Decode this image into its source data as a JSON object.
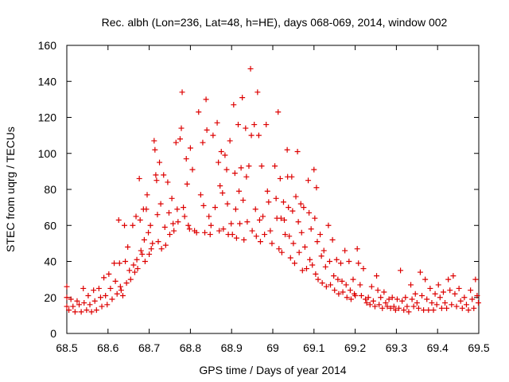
{
  "chart_data": {
    "type": "scatter",
    "title": "Rec. albh (Lon=236, Lat=48, h=HE), days 068-069, 2014, window 002",
    "xlabel": "GPS time / Days of year 2014",
    "ylabel": "STEC from uqrg / TECUs",
    "xlim": [
      68.5,
      69.5
    ],
    "ylim": [
      0,
      160
    ],
    "x_ticks": [
      68.5,
      68.6,
      68.7,
      68.8,
      68.9,
      69.0,
      69.1,
      69.2,
      69.3,
      69.4,
      69.5
    ],
    "x_tick_labels": [
      "68.5",
      "68.6",
      "68.7",
      "68.8",
      "68.9",
      "69",
      "69.1",
      "69.2",
      "69.3",
      "69.4",
      "69.5"
    ],
    "y_ticks": [
      0,
      20,
      40,
      60,
      80,
      100,
      120,
      140,
      160
    ],
    "y_tick_labels": [
      "0",
      "20",
      "40",
      "60",
      "80",
      "100",
      "120",
      "140",
      "160"
    ],
    "grid": false,
    "marker": "+",
    "color": "#dd0000",
    "series": [
      {
        "name": "STEC",
        "points": [
          [
            68.5,
            26
          ],
          [
            68.5,
            20
          ],
          [
            68.5,
            15
          ],
          [
            68.505,
            13
          ],
          [
            68.51,
            19
          ],
          [
            68.515,
            15
          ],
          [
            68.52,
            12
          ],
          [
            68.525,
            18
          ],
          [
            68.53,
            16
          ],
          [
            68.535,
            12
          ],
          [
            68.54,
            25
          ],
          [
            68.542,
            17
          ],
          [
            68.548,
            13
          ],
          [
            68.552,
            21
          ],
          [
            68.556,
            16
          ],
          [
            68.56,
            12
          ],
          [
            68.565,
            24
          ],
          [
            68.568,
            18
          ],
          [
            68.572,
            13
          ],
          [
            68.578,
            25
          ],
          [
            68.582,
            20
          ],
          [
            68.585,
            15
          ],
          [
            68.59,
            31
          ],
          [
            68.594,
            21
          ],
          [
            68.598,
            16
          ],
          [
            68.602,
            33
          ],
          [
            68.606,
            25
          ],
          [
            68.61,
            19
          ],
          [
            68.615,
            39
          ],
          [
            68.618,
            29
          ],
          [
            68.622,
            22
          ],
          [
            68.626,
            63
          ],
          [
            68.628,
            39
          ],
          [
            68.63,
            26
          ],
          [
            68.632,
            24
          ],
          [
            68.636,
            21
          ],
          [
            68.64,
            60
          ],
          [
            68.642,
            40
          ],
          [
            68.645,
            28
          ],
          [
            68.648,
            48
          ],
          [
            68.652,
            35
          ],
          [
            68.655,
            30
          ],
          [
            68.66,
            60
          ],
          [
            68.662,
            38
          ],
          [
            68.665,
            34
          ],
          [
            68.668,
            65
          ],
          [
            68.67,
            41
          ],
          [
            68.672,
            36
          ],
          [
            68.676,
            86
          ],
          [
            68.678,
            63
          ],
          [
            68.68,
            46
          ],
          [
            68.683,
            44
          ],
          [
            68.686,
            69
          ],
          [
            68.688,
            52
          ],
          [
            68.69,
            40
          ],
          [
            68.693,
            69
          ],
          [
            68.695,
            77
          ],
          [
            68.698,
            56
          ],
          [
            68.7,
            44
          ],
          [
            68.703,
            60
          ],
          [
            68.705,
            47
          ],
          [
            68.708,
            50
          ],
          [
            68.712,
            107
          ],
          [
            68.714,
            102
          ],
          [
            68.716,
            88
          ],
          [
            68.718,
            85
          ],
          [
            68.72,
            66
          ],
          [
            68.722,
            51
          ],
          [
            68.725,
            95
          ],
          [
            68.728,
            72
          ],
          [
            68.73,
            47
          ],
          [
            68.735,
            88
          ],
          [
            68.738,
            59
          ],
          [
            68.74,
            49
          ],
          [
            68.745,
            84
          ],
          [
            68.748,
            67
          ],
          [
            68.75,
            55
          ],
          [
            68.755,
            75
          ],
          [
            68.758,
            61
          ],
          [
            68.76,
            57
          ],
          [
            68.765,
            106
          ],
          [
            68.768,
            69
          ],
          [
            68.77,
            62
          ],
          [
            68.775,
            108
          ],
          [
            68.778,
            114
          ],
          [
            68.78,
            134
          ],
          [
            68.783,
            70
          ],
          [
            68.786,
            65
          ],
          [
            68.79,
            97
          ],
          [
            68.792,
            83
          ],
          [
            68.795,
            60
          ],
          [
            68.798,
            58
          ],
          [
            68.8,
            103
          ],
          [
            68.805,
            91
          ],
          [
            68.81,
            57
          ],
          [
            68.815,
            56
          ],
          [
            68.82,
            123
          ],
          [
            68.825,
            77
          ],
          [
            68.83,
            106
          ],
          [
            68.832,
            71
          ],
          [
            68.835,
            56
          ],
          [
            68.838,
            130
          ],
          [
            68.84,
            113
          ],
          [
            68.845,
            65
          ],
          [
            68.848,
            55
          ],
          [
            68.85,
            60
          ],
          [
            68.855,
            110
          ],
          [
            68.86,
            70
          ],
          [
            68.865,
            117
          ],
          [
            68.868,
            95
          ],
          [
            68.87,
            57
          ],
          [
            68.872,
            82
          ],
          [
            68.875,
            101
          ],
          [
            68.878,
            78
          ],
          [
            68.88,
            58
          ],
          [
            68.884,
            99
          ],
          [
            68.888,
            91
          ],
          [
            68.89,
            72
          ],
          [
            68.892,
            55
          ],
          [
            68.896,
            107
          ],
          [
            68.899,
            61
          ],
          [
            68.902,
            55
          ],
          [
            68.905,
            127
          ],
          [
            68.908,
            89
          ],
          [
            68.91,
            69
          ],
          [
            68.912,
            53
          ],
          [
            68.916,
            116
          ],
          [
            68.918,
            79
          ],
          [
            68.92,
            61
          ],
          [
            68.923,
            92
          ],
          [
            68.926,
            131
          ],
          [
            68.928,
            74
          ],
          [
            68.93,
            52
          ],
          [
            68.934,
            114
          ],
          [
            68.936,
            87
          ],
          [
            68.938,
            62
          ],
          [
            68.942,
            93
          ],
          [
            68.946,
            147
          ],
          [
            68.948,
            110
          ],
          [
            68.95,
            57
          ],
          [
            68.955,
            116
          ],
          [
            68.958,
            69
          ],
          [
            68.96,
            54
          ],
          [
            68.963,
            134
          ],
          [
            68.966,
            110
          ],
          [
            68.968,
            63
          ],
          [
            68.97,
            51
          ],
          [
            68.973,
            93
          ],
          [
            68.976,
            65
          ],
          [
            68.98,
            55
          ],
          [
            68.984,
            116
          ],
          [
            68.987,
            79
          ],
          [
            68.99,
            73
          ],
          [
            68.994,
            57
          ],
          [
            68.998,
            50
          ],
          [
            69.005,
            93
          ],
          [
            69.008,
            75
          ],
          [
            69.01,
            64
          ],
          [
            69.013,
            123
          ],
          [
            69.015,
            47
          ],
          [
            69.018,
            86
          ],
          [
            69.02,
            64
          ],
          [
            69.022,
            45
          ],
          [
            69.026,
            73
          ],
          [
            69.028,
            63
          ],
          [
            69.03,
            55
          ],
          [
            69.035,
            102
          ],
          [
            69.036,
            87
          ],
          [
            69.038,
            70
          ],
          [
            69.04,
            54
          ],
          [
            69.043,
            42
          ],
          [
            69.046,
            87
          ],
          [
            69.048,
            68
          ],
          [
            69.05,
            50
          ],
          [
            69.053,
            39
          ],
          [
            69.056,
            76
          ],
          [
            69.06,
            101
          ],
          [
            69.062,
            62
          ],
          [
            69.064,
            45
          ],
          [
            69.068,
            72
          ],
          [
            69.07,
            56
          ],
          [
            69.072,
            35
          ],
          [
            69.075,
            70
          ],
          [
            69.078,
            48
          ],
          [
            69.082,
            36
          ],
          [
            69.086,
            85
          ],
          [
            69.088,
            67
          ],
          [
            69.09,
            41
          ],
          [
            69.093,
            58
          ],
          [
            69.096,
            38
          ],
          [
            69.1,
            91
          ],
          [
            69.102,
            64
          ],
          [
            69.104,
            33
          ],
          [
            69.106,
            81
          ],
          [
            69.108,
            51
          ],
          [
            69.11,
            30
          ],
          [
            69.115,
            55
          ],
          [
            69.118,
            43
          ],
          [
            69.12,
            28
          ],
          [
            69.124,
            46
          ],
          [
            69.128,
            37
          ],
          [
            69.13,
            26
          ],
          [
            69.135,
            60
          ],
          [
            69.138,
            40
          ],
          [
            69.14,
            27
          ],
          [
            69.145,
            52
          ],
          [
            69.148,
            32
          ],
          [
            69.15,
            24
          ],
          [
            69.155,
            41
          ],
          [
            69.158,
            30
          ],
          [
            69.16,
            22
          ],
          [
            69.165,
            39
          ],
          [
            69.168,
            29
          ],
          [
            69.17,
            23
          ],
          [
            69.175,
            46
          ],
          [
            69.178,
            27
          ],
          [
            69.18,
            20
          ],
          [
            69.185,
            40
          ],
          [
            69.188,
            24
          ],
          [
            69.19,
            19
          ],
          [
            69.195,
            30
          ],
          [
            69.198,
            22
          ],
          [
            69.2,
            21
          ],
          [
            69.205,
            47
          ],
          [
            69.208,
            39
          ],
          [
            69.212,
            27
          ],
          [
            69.215,
            21
          ],
          [
            69.22,
            36
          ],
          [
            69.225,
            19
          ],
          [
            69.228,
            17
          ],
          [
            69.232,
            20
          ],
          [
            69.236,
            16
          ],
          [
            69.24,
            26
          ],
          [
            69.244,
            18
          ],
          [
            69.248,
            15
          ],
          [
            69.252,
            32
          ],
          [
            69.255,
            24
          ],
          [
            69.258,
            16
          ],
          [
            69.262,
            20
          ],
          [
            69.266,
            14
          ],
          [
            69.27,
            23
          ],
          [
            69.274,
            17
          ],
          [
            69.278,
            15
          ],
          [
            69.282,
            19
          ],
          [
            69.286,
            14
          ],
          [
            69.29,
            20
          ],
          [
            69.294,
            15
          ],
          [
            69.298,
            13
          ],
          [
            69.302,
            19
          ],
          [
            69.306,
            14
          ],
          [
            69.31,
            35
          ],
          [
            69.314,
            18
          ],
          [
            69.318,
            13
          ],
          [
            69.322,
            20
          ],
          [
            69.326,
            15
          ],
          [
            69.33,
            12
          ],
          [
            69.335,
            27
          ],
          [
            69.338,
            19
          ],
          [
            69.342,
            15
          ],
          [
            69.346,
            22
          ],
          [
            69.35,
            17
          ],
          [
            69.354,
            14
          ],
          [
            69.358,
            34
          ],
          [
            69.362,
            21
          ],
          [
            69.366,
            13
          ],
          [
            69.37,
            30
          ],
          [
            69.374,
            19
          ],
          [
            69.378,
            13
          ],
          [
            69.382,
            25
          ],
          [
            69.386,
            17
          ],
          [
            69.39,
            13
          ],
          [
            69.394,
            22
          ],
          [
            69.398,
            16
          ],
          [
            69.402,
            27
          ],
          [
            69.406,
            20
          ],
          [
            69.41,
            14
          ],
          [
            69.414,
            23
          ],
          [
            69.418,
            17
          ],
          [
            69.422,
            14
          ],
          [
            69.426,
            30
          ],
          [
            69.43,
            24
          ],
          [
            69.434,
            16
          ],
          [
            69.438,
            32
          ],
          [
            69.442,
            22
          ],
          [
            69.446,
            15
          ],
          [
            69.452,
            25
          ],
          [
            69.456,
            18
          ],
          [
            69.46,
            14
          ],
          [
            69.465,
            20
          ],
          [
            69.47,
            16
          ],
          [
            69.475,
            13
          ],
          [
            69.48,
            24
          ],
          [
            69.484,
            19
          ],
          [
            69.488,
            14
          ],
          [
            69.492,
            30
          ],
          [
            69.496,
            21
          ],
          [
            69.499,
            17
          ]
        ]
      }
    ]
  }
}
